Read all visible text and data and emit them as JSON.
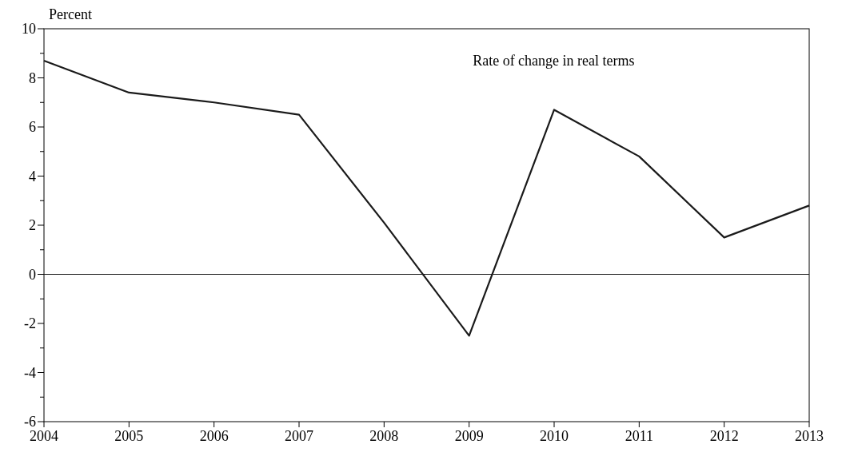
{
  "chart_data": {
    "type": "line",
    "ylabel": "Percent",
    "x": [
      2004,
      2005,
      2006,
      2007,
      2008,
      2009,
      2010,
      2011,
      2012,
      2013
    ],
    "series": [
      {
        "name": "Rate of change in real terms",
        "color": "#1a1a1a",
        "values": [
          8.7,
          7.4,
          7.0,
          6.5,
          2.1,
          -2.5,
          6.7,
          4.8,
          1.5,
          2.8
        ]
      }
    ],
    "xlim": [
      2004,
      2013
    ],
    "xticks": [
      2004,
      2005,
      2006,
      2007,
      2008,
      2009,
      2010,
      2011,
      2012,
      2013
    ],
    "ylim": [
      -6,
      10
    ],
    "yticks": [
      -6,
      {
        "value": -5,
        "label": null
      },
      -4,
      {
        "value": -3,
        "label": null
      },
      -2,
      {
        "value": -1,
        "label": null
      },
      0,
      {
        "value": 1,
        "label": null
      },
      2,
      {
        "value": 3,
        "label": null
      },
      4,
      {
        "value": 5,
        "label": null
      },
      6,
      {
        "value": 7,
        "label": null
      },
      8,
      {
        "value": 9,
        "label": null
      },
      10
    ],
    "ref_lines": [
      {
        "axis": "y",
        "value": 0,
        "color": "#1a1a1a"
      }
    ],
    "grid": false,
    "marker": "none",
    "line_style": "solid"
  }
}
